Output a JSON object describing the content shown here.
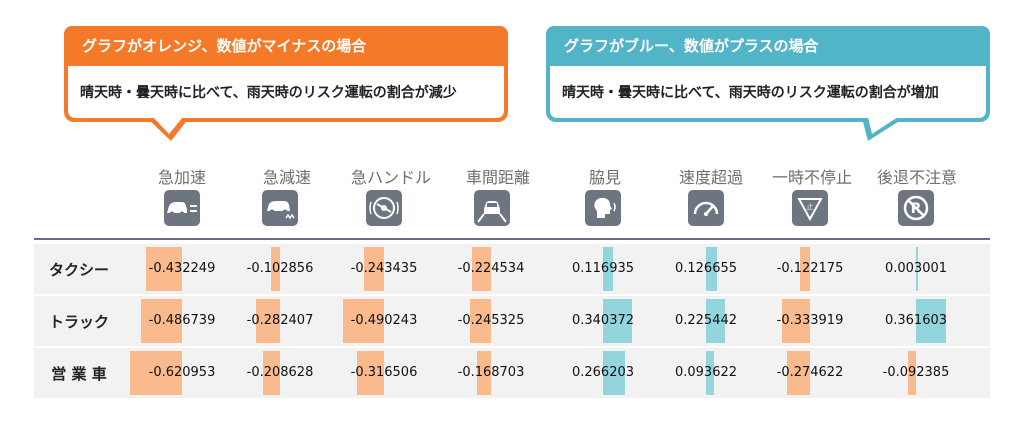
{
  "callouts": {
    "negative": {
      "title": "グラフがオレンジ、数値がマイナスの場合",
      "text": "晴天時・曇天時に比べて、雨天時のリスク運転の割合が減少",
      "color": "#f47a2a"
    },
    "positive": {
      "title": "グラフがブルー、数値がプラスの場合",
      "text": "晴天時・曇天時に比べて、雨天時のリスク運転の割合が増加",
      "color": "#52b4c7"
    }
  },
  "colors": {
    "neg_bar": "#f9bb8e",
    "pos_bar": "#93d5dd",
    "row_bg": "#f2f2f2",
    "icon_bg": "#6d7680"
  },
  "chart_data": {
    "type": "table",
    "columns": [
      {
        "label": "急加速",
        "icon": "car-acceleration-icon"
      },
      {
        "label": "急減速",
        "icon": "car-braking-icon"
      },
      {
        "label": "急ハンドル",
        "icon": "steering-wheel-icon"
      },
      {
        "label": "車間距離",
        "icon": "following-distance-icon"
      },
      {
        "label": "脇見",
        "icon": "driver-head-icon"
      },
      {
        "label": "速度超過",
        "icon": "speedometer-icon"
      },
      {
        "label": "一時不停止",
        "icon": "stop-sign-icon"
      },
      {
        "label": "後退不注意",
        "icon": "no-reverse-icon"
      }
    ],
    "rows": [
      {
        "label": "タクシー",
        "values": [
          -0.432249,
          -0.102856,
          -0.243435,
          -0.224534,
          0.116935,
          0.126655,
          -0.122175,
          0.003001
        ]
      },
      {
        "label": "トラック",
        "values": [
          -0.486739,
          -0.282407,
          -0.490243,
          -0.245325,
          0.340372,
          0.225442,
          -0.333919,
          0.361603
        ]
      },
      {
        "label": "営 業 車",
        "values": [
          -0.620953,
          -0.208628,
          -0.316506,
          -0.168703,
          0.266203,
          0.093622,
          -0.274622,
          -0.092385
        ]
      }
    ]
  }
}
